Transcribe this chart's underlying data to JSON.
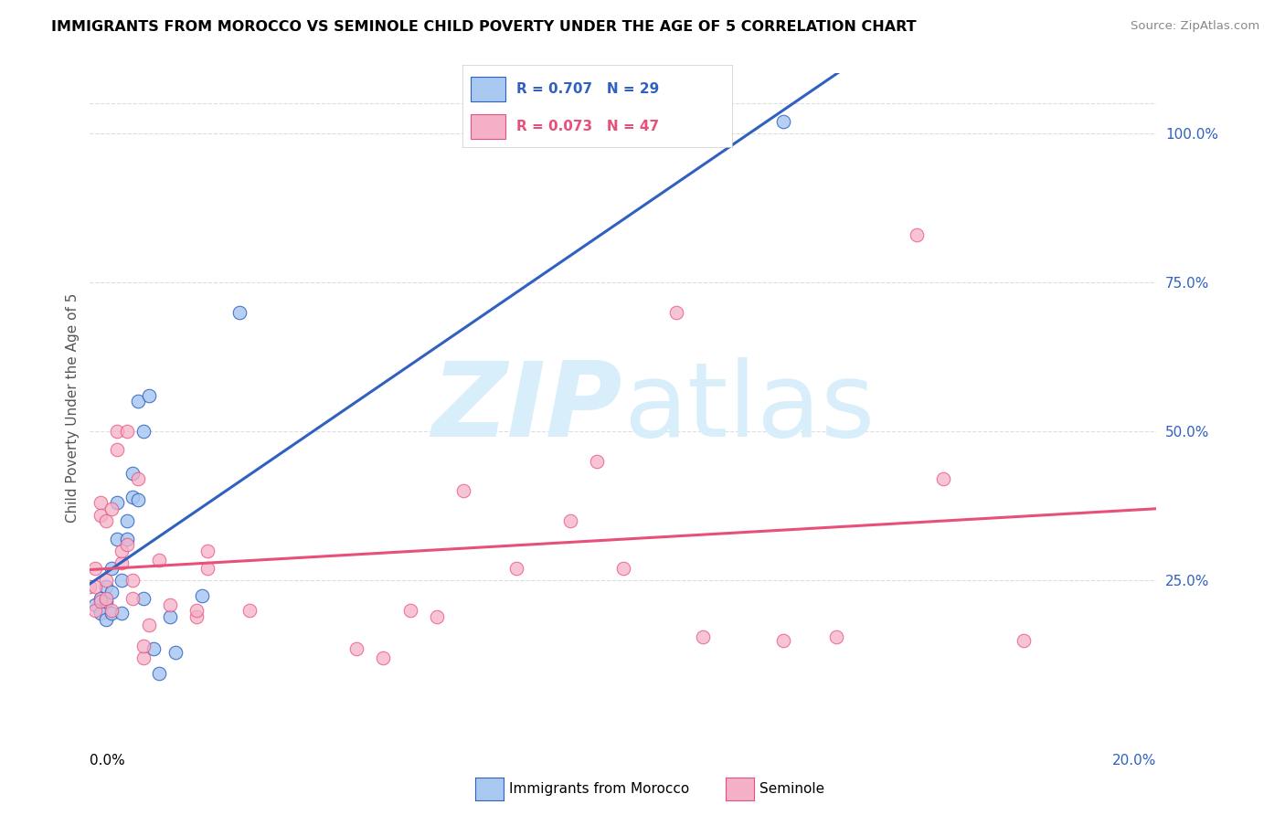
{
  "title": "IMMIGRANTS FROM MOROCCO VS SEMINOLE CHILD POVERTY UNDER THE AGE OF 5 CORRELATION CHART",
  "source": "Source: ZipAtlas.com",
  "ylabel": "Child Poverty Under the Age of 5",
  "right_ytick_labels": [
    "25.0%",
    "50.0%",
    "75.0%",
    "100.0%"
  ],
  "right_ytick_values": [
    0.25,
    0.5,
    0.75,
    1.0
  ],
  "xlim": [
    0.0,
    0.2
  ],
  "ylim": [
    -0.02,
    1.1
  ],
  "blue_R": 0.707,
  "blue_N": 29,
  "pink_R": 0.073,
  "pink_N": 47,
  "legend_label_blue": "Immigrants from Morocco",
  "legend_label_pink": "Seminole",
  "blue_color": "#A8C8F0",
  "pink_color": "#F5B0C8",
  "blue_line_color": "#3060C0",
  "pink_line_color": "#E8507A",
  "watermark_color": "#D8EEFA",
  "grid_color": "#DDDDDD",
  "blue_points_x": [
    0.001,
    0.002,
    0.002,
    0.003,
    0.003,
    0.003,
    0.004,
    0.004,
    0.004,
    0.005,
    0.005,
    0.006,
    0.006,
    0.007,
    0.007,
    0.008,
    0.008,
    0.009,
    0.009,
    0.01,
    0.01,
    0.011,
    0.012,
    0.013,
    0.015,
    0.016,
    0.021,
    0.028,
    0.13
  ],
  "blue_points_y": [
    0.21,
    0.22,
    0.195,
    0.24,
    0.215,
    0.185,
    0.27,
    0.23,
    0.195,
    0.32,
    0.38,
    0.25,
    0.195,
    0.35,
    0.32,
    0.39,
    0.43,
    0.385,
    0.55,
    0.5,
    0.22,
    0.56,
    0.135,
    0.095,
    0.19,
    0.13,
    0.225,
    0.7,
    1.02
  ],
  "pink_points_x": [
    0.0,
    0.001,
    0.001,
    0.001,
    0.002,
    0.002,
    0.002,
    0.003,
    0.003,
    0.003,
    0.004,
    0.004,
    0.005,
    0.005,
    0.006,
    0.006,
    0.007,
    0.007,
    0.008,
    0.008,
    0.009,
    0.01,
    0.01,
    0.011,
    0.013,
    0.015,
    0.02,
    0.02,
    0.022,
    0.022,
    0.03,
    0.05,
    0.055,
    0.06,
    0.065,
    0.07,
    0.08,
    0.09,
    0.095,
    0.1,
    0.11,
    0.115,
    0.13,
    0.14,
    0.155,
    0.16,
    0.175
  ],
  "pink_points_y": [
    0.24,
    0.27,
    0.24,
    0.2,
    0.38,
    0.36,
    0.215,
    0.22,
    0.35,
    0.25,
    0.37,
    0.2,
    0.5,
    0.47,
    0.28,
    0.3,
    0.31,
    0.5,
    0.25,
    0.22,
    0.42,
    0.12,
    0.14,
    0.175,
    0.285,
    0.21,
    0.19,
    0.2,
    0.3,
    0.27,
    0.2,
    0.135,
    0.12,
    0.2,
    0.19,
    0.4,
    0.27,
    0.35,
    0.45,
    0.27,
    0.7,
    0.155,
    0.15,
    0.155,
    0.83,
    0.42,
    0.15
  ]
}
